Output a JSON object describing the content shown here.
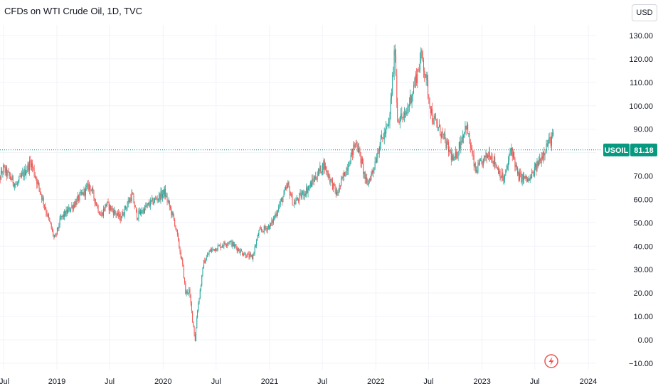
{
  "header": {
    "title": "CFDs on WTI Crude Oil, 1D, TVC",
    "currency_label": "USD"
  },
  "colors": {
    "up": "#26a69a",
    "down": "#ef5350",
    "grid": "#f0f3fa",
    "axis_text": "#131722",
    "last_price": "#089981"
  },
  "icons": {
    "event_marker": "lightning-icon"
  },
  "chart_data": {
    "type": "line",
    "title": "CFDs on WTI Crude Oil, 1D, TVC",
    "xlabel": "",
    "ylabel": "",
    "ylim": [
      -12,
      132
    ],
    "y_ticks": [
      "130.00",
      "120.00",
      "110.00",
      "100.00",
      "90.00",
      "80.00",
      "70.00",
      "60.00",
      "50.00",
      "40.00",
      "30.00",
      "20.00",
      "10.00",
      "0.00",
      "−10.00"
    ],
    "y_tick_values": [
      130,
      120,
      110,
      100,
      90,
      80,
      70,
      60,
      50,
      40,
      30,
      20,
      10,
      0,
      -10
    ],
    "x_ticks": [
      "Jul",
      "2019",
      "Jul",
      "2020",
      "Jul",
      "2021",
      "Jul",
      "2022",
      "Jul",
      "2023",
      "Jul",
      "2024"
    ],
    "x_tick_dates": [
      "2018-07-01",
      "2019-01-01",
      "2019-07-01",
      "2020-01-01",
      "2020-07-01",
      "2021-01-01",
      "2021-07-01",
      "2022-01-01",
      "2022-07-01",
      "2023-01-01",
      "2023-07-01",
      "2024-01-01"
    ],
    "grid": false,
    "last_price": {
      "symbol": "USOIL",
      "value": "81.18",
      "price": 81.18
    },
    "series": [
      {
        "style": "candles",
        "x": [
          "2018-06-05",
          "2018-07-01",
          "2018-08-15",
          "2018-10-03",
          "2018-11-01",
          "2018-12-24",
          "2019-01-15",
          "2019-02-15",
          "2019-04-23",
          "2019-06-01",
          "2019-06-20",
          "2019-08-07",
          "2019-09-16",
          "2019-10-03",
          "2019-11-15",
          "2020-01-06",
          "2020-01-20",
          "2020-02-10",
          "2020-03-09",
          "2020-03-18",
          "2020-03-30",
          "2020-04-20",
          "2020-04-28",
          "2020-05-20",
          "2020-06-10",
          "2020-08-15",
          "2020-10-01",
          "2020-11-02",
          "2020-11-25",
          "2021-01-05",
          "2021-03-05",
          "2021-03-23",
          "2021-05-15",
          "2021-07-06",
          "2021-08-20",
          "2021-10-26",
          "2021-12-01",
          "2021-12-20",
          "2022-01-15",
          "2022-02-15",
          "2022-03-08",
          "2022-03-16",
          "2022-04-11",
          "2022-05-15",
          "2022-06-08",
          "2022-07-14",
          "2022-08-15",
          "2022-09-26",
          "2022-11-07",
          "2022-12-09",
          "2023-01-27",
          "2023-03-17",
          "2023-04-12",
          "2023-05-04",
          "2023-06-12",
          "2023-07-15",
          "2023-08-10",
          "2023-09-27",
          "2023-10-06",
          "2023-10-16"
        ],
        "values": [
          65,
          73,
          66,
          76,
          65,
          43,
          52,
          56,
          66,
          53,
          58,
          52,
          62,
          53,
          58,
          63,
          58,
          50,
          31,
          20,
          21,
          0,
          13,
          33,
          38,
          42,
          37,
          35,
          46,
          49,
          66,
          58,
          65,
          75,
          62,
          85,
          66,
          72,
          84,
          92,
          125,
          95,
          95,
          110,
          122,
          95,
          88,
          76,
          92,
          72,
          80,
          68,
          82,
          70,
          68,
          76,
          83,
          91,
          84,
          82
        ]
      }
    ]
  }
}
